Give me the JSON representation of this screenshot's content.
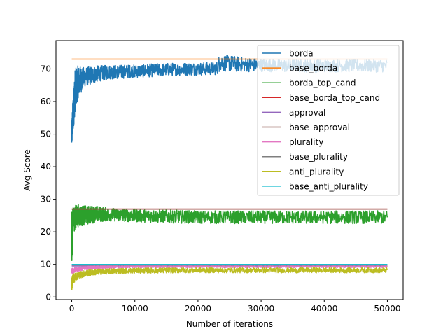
{
  "chart_data": {
    "type": "line",
    "title": "",
    "xlabel": "Number of iterations",
    "ylabel": "Avg Score",
    "xlim": [
      -2500,
      52500
    ],
    "ylim": [
      -0.8,
      78.7
    ],
    "xticks": [
      0,
      10000,
      20000,
      30000,
      40000,
      50000
    ],
    "yticks": [
      0,
      10,
      20,
      30,
      40,
      50,
      60,
      70
    ],
    "grid": false,
    "legend_position": "upper-right",
    "series": [
      {
        "name": "borda",
        "color": "#1f77b4",
        "style": "noisy",
        "x": [
          0,
          200,
          500,
          1000,
          2000,
          4000,
          6000,
          10000,
          15000,
          20000,
          23000,
          23500,
          24000,
          26000,
          28000,
          30000,
          33000,
          36000,
          40000,
          45000,
          50000
        ],
        "y": [
          50,
          56,
          63,
          66,
          67.5,
          68.5,
          69,
          69.3,
          69.8,
          70,
          70.2,
          72,
          71.8,
          71.5,
          71.3,
          71.2,
          71,
          71,
          71,
          71,
          71
        ],
        "noise": [
          4,
          6,
          7,
          5,
          3,
          2.5,
          2.2,
          2.0,
          2.0,
          2.0,
          2.0,
          2.8,
          2.6,
          2.4,
          2.2,
          2.0,
          2.0,
          2.0,
          2.0,
          2.0,
          2.0
        ]
      },
      {
        "name": "base_borda",
        "color": "#ff7f0e",
        "style": "flat",
        "x": [
          0,
          50000
        ],
        "y": [
          73,
          73
        ]
      },
      {
        "name": "borda_top_cand",
        "color": "#2ca02c",
        "style": "noisy",
        "x": [
          0,
          300,
          1000,
          2000,
          4000,
          6000,
          10000,
          20000,
          30000,
          40000,
          50000
        ],
        "y": [
          18,
          24,
          25,
          25,
          25.5,
          25.3,
          25,
          24.5,
          24.5,
          24.5,
          24.5
        ],
        "noise": [
          8,
          4,
          3.5,
          3,
          2.5,
          2,
          2,
          2,
          2,
          2,
          2
        ]
      },
      {
        "name": "base_borda_top_cand",
        "color": "#d62728",
        "style": "flat",
        "x": [
          0,
          50000
        ],
        "y": [
          27,
          27
        ]
      },
      {
        "name": "approval",
        "color": "#9467bd",
        "style": "flat",
        "x": [
          0,
          50000
        ],
        "y": [
          9.5,
          9.5
        ]
      },
      {
        "name": "base_approval",
        "color": "#8c564b",
        "style": "flat",
        "x": [
          0,
          50000
        ],
        "y": [
          27,
          27
        ]
      },
      {
        "name": "plurality",
        "color": "#e377c2",
        "style": "noisy",
        "x": [
          0,
          500,
          1500,
          3000,
          6000,
          10000,
          20000,
          30000,
          40000,
          50000
        ],
        "y": [
          8,
          8.3,
          8.7,
          9,
          9.2,
          9.3,
          9.3,
          9.3,
          9.3,
          9.3
        ],
        "noise": [
          0.8,
          0.7,
          0.6,
          0.5,
          0.4,
          0.3,
          0.3,
          0.3,
          0.3,
          0.3
        ]
      },
      {
        "name": "base_plurality",
        "color": "#7f7f7f",
        "style": "flat",
        "x": [
          0,
          50000
        ],
        "y": [
          9.8,
          9.8
        ]
      },
      {
        "name": "anti_plurality",
        "color": "#bcbd22",
        "style": "noisy",
        "x": [
          0,
          200,
          800,
          2000,
          4000,
          7000,
          10000,
          20000,
          30000,
          40000,
          50000
        ],
        "y": [
          4,
          5.5,
          6.5,
          7.2,
          7.7,
          8,
          8.1,
          8.2,
          8.2,
          8.2,
          8.2
        ],
        "noise": [
          2,
          1.5,
          1.2,
          1.0,
          0.9,
          0.8,
          0.8,
          0.8,
          0.8,
          0.8,
          0.8
        ]
      },
      {
        "name": "base_anti_plurality",
        "color": "#17becf",
        "style": "flat",
        "x": [
          0,
          50000
        ],
        "y": [
          10,
          10
        ]
      }
    ]
  }
}
